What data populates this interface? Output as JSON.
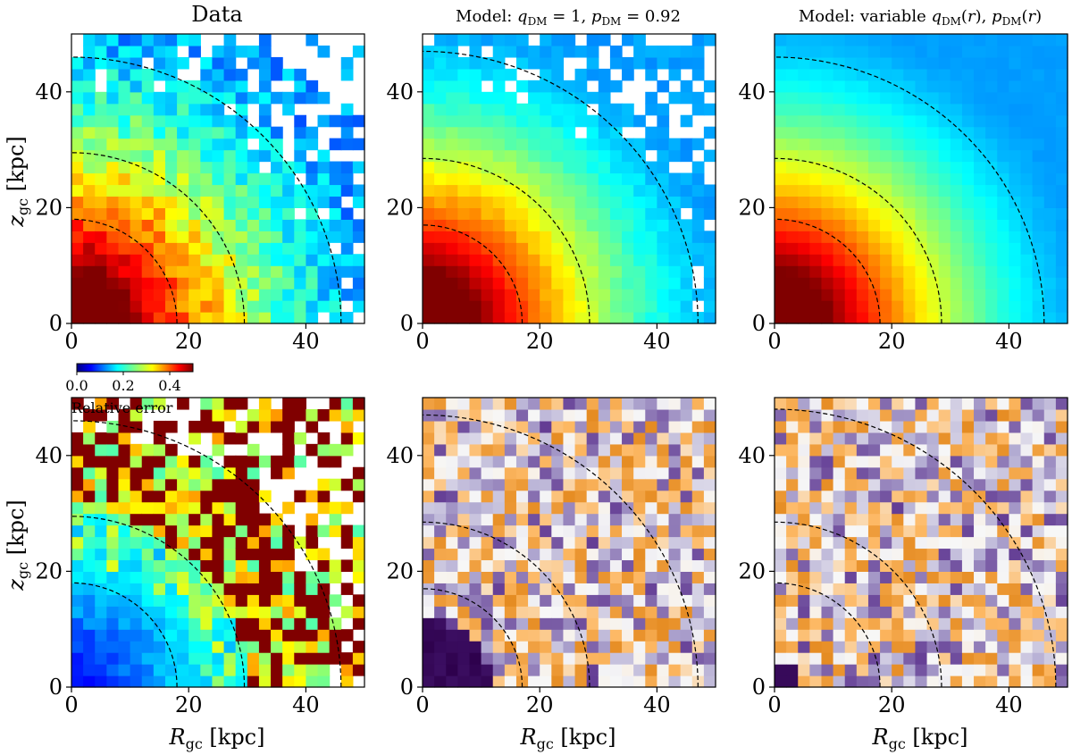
{
  "chart_data": {
    "type": "heatmap",
    "colorbar": {
      "label": "Relative error",
      "ticks": [
        "0.0",
        "0.2",
        "0.4"
      ],
      "range": [
        0,
        0.5
      ],
      "colormap": "jet"
    },
    "axes": {
      "xlabel": "R_gc [kpc]",
      "ylabel": "z_gc [kpc]",
      "xlim": [
        0,
        50
      ],
      "ylim": [
        0,
        50
      ],
      "xticks": [
        0,
        20,
        40
      ],
      "yticks": [
        0,
        20,
        40
      ]
    },
    "grid_bins": 25,
    "panels": [
      {
        "id": "data",
        "row": 0,
        "col": 0,
        "title": "Data",
        "map": "density",
        "seed": 3,
        "contour_radii": [
          18,
          29.5,
          46
        ]
      },
      {
        "id": "model-const",
        "row": 0,
        "col": 1,
        "title": "Model: q_DM = 1, p_DM = 0.92",
        "map": "density",
        "seed": 7,
        "contour_radii": [
          17,
          28.5,
          47
        ]
      },
      {
        "id": "model-var",
        "row": 0,
        "col": 2,
        "title": "Model: variable q_DM(r), p_DM(r)",
        "map": "density",
        "seed": 11,
        "contour_radii": [
          18,
          28.5,
          46
        ]
      },
      {
        "id": "rel-error",
        "row": 1,
        "col": 0,
        "title": "",
        "map": "error",
        "seed": 5,
        "contour_radii": [
          18,
          29.5,
          46
        ]
      },
      {
        "id": "residual-const",
        "row": 1,
        "col": 1,
        "title": "",
        "map": "residual",
        "seed": 13,
        "contour_radii": [
          17,
          28.5,
          47
        ]
      },
      {
        "id": "residual-var",
        "row": 1,
        "col": 2,
        "title": "",
        "map": "residual",
        "seed": 17,
        "contour_radii": [
          18,
          28.5,
          48
        ]
      }
    ]
  }
}
